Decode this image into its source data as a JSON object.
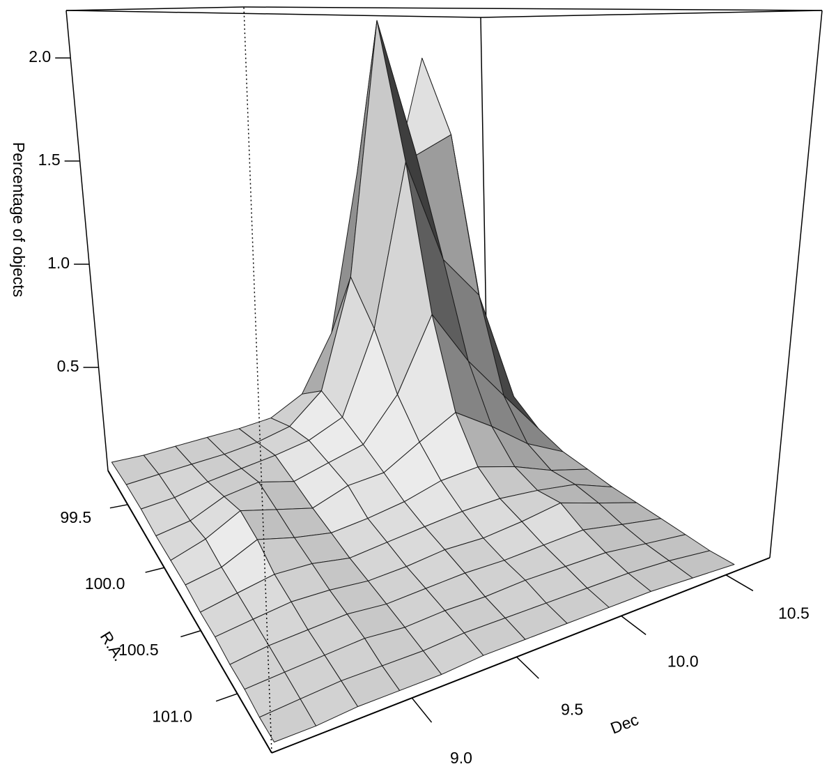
{
  "chart_data": {
    "type": "surface",
    "xlabel": "R.A.",
    "ylabel": "Dec",
    "zlabel": "Percentage of objects",
    "xlim": [
      99.23,
      101.47
    ],
    "ylim": [
      8.33,
      10.71
    ],
    "zlim": [
      0,
      2.23
    ],
    "xticks": [
      99.5,
      {
        "value": 100.0,
        "label": "100.0"
      },
      100.5,
      {
        "value": 101.0,
        "label": "101.0"
      }
    ],
    "yticks": [
      {
        "value": 9.0,
        "label": "9.0"
      },
      9.5,
      {
        "value": 10.0,
        "label": "10.0"
      },
      10.5
    ],
    "zticks": [
      0.5,
      {
        "value": 1.0,
        "label": "1.0"
      },
      1.5,
      {
        "value": 2.0,
        "label": "2.0"
      }
    ],
    "color": "#b4b4b4",
    "x": [
      99.25,
      99.45,
      99.65,
      99.85,
      100.05,
      100.25,
      100.45,
      100.65,
      100.85,
      101.05,
      101.25,
      101.45
    ],
    "y": [
      8.35,
      8.55,
      8.75,
      8.95,
      9.15,
      9.35,
      9.55,
      9.75,
      9.95,
      10.15,
      10.35,
      10.55
    ],
    "z": [
      [
        0.05,
        0.06,
        0.08,
        0.1,
        0.12,
        0.15,
        0.25,
        0.55,
        1.4,
        1.3,
        2.0,
        0.6
      ],
      [
        0.06,
        0.08,
        0.1,
        0.12,
        0.15,
        0.2,
        0.35,
        0.9,
        2.2,
        1.5,
        1.6,
        0.45
      ],
      [
        0.06,
        0.08,
        0.12,
        0.15,
        0.18,
        0.22,
        0.3,
        0.7,
        1.5,
        1.0,
        0.8,
        0.25
      ],
      [
        0.05,
        0.08,
        0.15,
        0.18,
        0.15,
        0.2,
        0.25,
        0.45,
        0.8,
        0.55,
        0.35,
        0.15
      ],
      [
        0.05,
        0.1,
        0.18,
        0.15,
        0.12,
        0.18,
        0.2,
        0.3,
        0.4,
        0.3,
        0.18,
        0.1
      ],
      [
        0.05,
        0.08,
        0.15,
        0.12,
        0.1,
        0.12,
        0.15,
        0.2,
        0.22,
        0.18,
        0.12,
        0.08
      ],
      [
        0.04,
        0.07,
        0.1,
        0.1,
        0.08,
        0.1,
        0.12,
        0.14,
        0.15,
        0.14,
        0.12,
        0.06
      ],
      [
        0.04,
        0.06,
        0.08,
        0.08,
        0.07,
        0.08,
        0.1,
        0.1,
        0.12,
        0.15,
        0.1,
        0.05
      ],
      [
        0.03,
        0.05,
        0.06,
        0.07,
        0.06,
        0.07,
        0.08,
        0.08,
        0.09,
        0.1,
        0.07,
        0.04
      ],
      [
        0.03,
        0.04,
        0.05,
        0.06,
        0.05,
        0.06,
        0.06,
        0.07,
        0.07,
        0.07,
        0.05,
        0.03
      ],
      [
        0.02,
        0.03,
        0.04,
        0.04,
        0.04,
        0.05,
        0.05,
        0.05,
        0.05,
        0.05,
        0.04,
        0.02
      ],
      [
        0.02,
        0.02,
        0.03,
        0.03,
        0.03,
        0.04,
        0.04,
        0.04,
        0.04,
        0.04,
        0.03,
        0.02
      ]
    ]
  }
}
